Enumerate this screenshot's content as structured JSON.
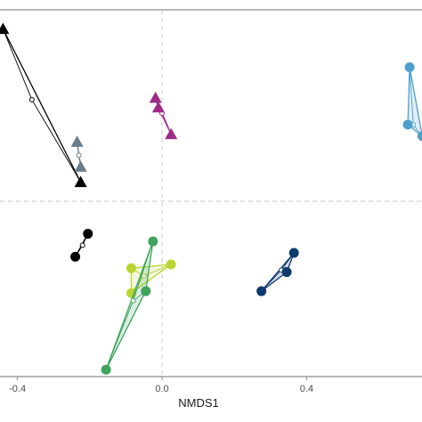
{
  "chart_data": {
    "type": "scatter",
    "xlabel": "NMDS1",
    "ylabel": "",
    "xlim": [
      -0.44,
      0.72
    ],
    "ylim": [
      -0.44,
      0.47
    ],
    "x_ticks": [
      {
        "value": -0.4,
        "label": "-0.4"
      },
      {
        "value": 0.0,
        "label": "0.0"
      },
      {
        "value": 0.4,
        "label": "0.4"
      }
    ],
    "reference_lines": {
      "x": 0,
      "y": 0
    },
    "groups": [
      {
        "color": "#000000",
        "shape": "triangle",
        "hull": "line",
        "points": [
          [
            -0.44,
            0.45
          ],
          [
            -0.225,
            0.05
          ]
        ],
        "centroid": [
          -0.36,
          0.265
        ]
      },
      {
        "color": "#6b7b87",
        "shape": "triangle",
        "hull": "polygon",
        "points": [
          [
            -0.235,
            0.155
          ],
          [
            -0.225,
            0.09
          ]
        ],
        "centroid": [
          -0.23,
          0.12
        ]
      },
      {
        "color": "#9e2a8a",
        "shape": "triangle",
        "hull": "polygon",
        "points": [
          [
            -0.018,
            0.27
          ],
          [
            -0.01,
            0.245
          ],
          [
            0.025,
            0.175
          ]
        ],
        "centroid": [
          0.0,
          0.23
        ]
      },
      {
        "color": "#4f9fcc",
        "shape": "circle",
        "hull": "polygon",
        "points": [
          [
            0.685,
            0.35
          ],
          [
            0.68,
            0.2
          ],
          [
            0.72,
            0.17
          ]
        ],
        "centroid": [
          0.695,
          0.2
        ]
      },
      {
        "color": "#000000",
        "shape": "circle",
        "hull": "line",
        "points": [
          [
            -0.24,
            -0.145
          ],
          [
            -0.205,
            -0.085
          ]
        ],
        "centroid": [
          -0.22,
          -0.115
        ]
      },
      {
        "color": "#0e3a6e",
        "shape": "circle",
        "hull": "polygon",
        "points": [
          [
            0.365,
            -0.135
          ],
          [
            0.345,
            -0.185
          ],
          [
            0.275,
            -0.235
          ]
        ],
        "centroid": [
          0.33,
          -0.18
        ]
      },
      {
        "color": "#b9d532",
        "shape": "circle",
        "hull": "polygon",
        "points": [
          [
            -0.085,
            -0.175
          ],
          [
            0.025,
            -0.165
          ],
          [
            -0.085,
            -0.24
          ]
        ],
        "centroid": [
          -0.05,
          -0.195
        ]
      },
      {
        "color": "#3da35d",
        "shape": "circle",
        "hull": "polygon",
        "points": [
          [
            -0.025,
            -0.105
          ],
          [
            -0.045,
            -0.235
          ],
          [
            -0.155,
            -0.44
          ]
        ],
        "centroid": [
          -0.08,
          -0.26
        ]
      }
    ]
  }
}
